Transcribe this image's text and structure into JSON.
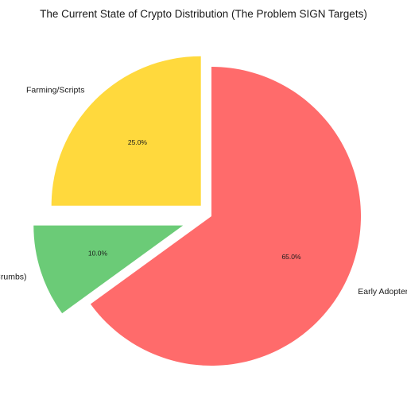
{
  "chart_data": {
    "type": "pie",
    "title": "The Current State of Crypto Distribution (The Problem SIGN Targets)",
    "start_angle": 90,
    "direction": "counterclockwise",
    "slices": [
      {
        "label": "Farming/Scripts",
        "value": 25.0,
        "pct_label": "25.0%",
        "color": "#ffd93d",
        "explode": 0.1
      },
      {
        "label": "Core Builders (Crumbs)",
        "value": 10.0,
        "pct_label": "10.0%",
        "color": "#6bcb77",
        "explode": 0.2
      },
      {
        "label": "Early Adopters/Bots",
        "value": 65.0,
        "pct_label": "65.0%",
        "color": "#ff6b6b",
        "explode": 0
      }
    ]
  }
}
